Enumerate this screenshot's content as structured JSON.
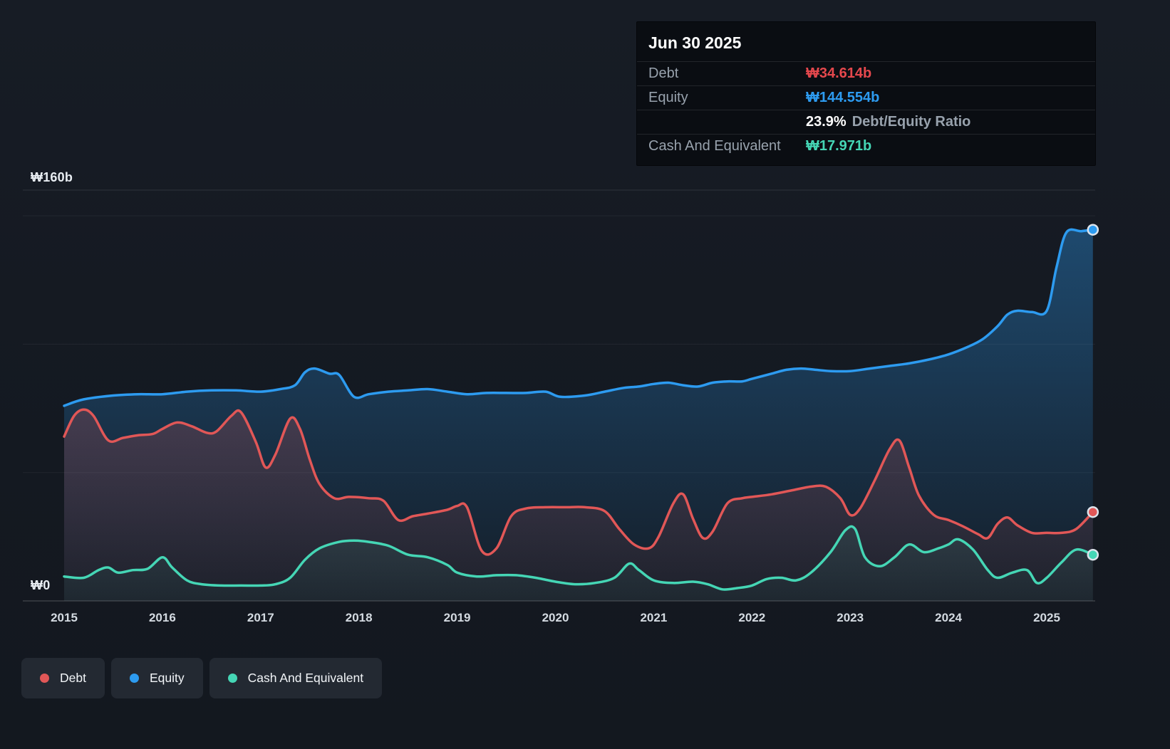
{
  "colors": {
    "background": "#151a21",
    "debt": "#e15757",
    "equity": "#2d9bf0",
    "cash": "#45d6b5"
  },
  "tooltip": {
    "date": "Jun 30 2025",
    "debt_label": "Debt",
    "debt_value": "₩34.614b",
    "equity_label": "Equity",
    "equity_value": "₩144.554b",
    "ratio_value": "23.9%",
    "ratio_label": "Debt/Equity Ratio",
    "cash_label": "Cash And Equivalent",
    "cash_value": "₩17.971b"
  },
  "y_axis": {
    "top_label": "₩160b",
    "bottom_label": "₩0"
  },
  "x_axis": {
    "ticks": [
      "2015",
      "2016",
      "2017",
      "2018",
      "2019",
      "2020",
      "2021",
      "2022",
      "2023",
      "2024",
      "2025"
    ]
  },
  "legend": {
    "debt": "Debt",
    "equity": "Equity",
    "cash": "Cash And Equivalent"
  },
  "chart_data": {
    "type": "area",
    "x_unit": "year",
    "xlim": [
      2015,
      2025.5
    ],
    "ylim": [
      0,
      160
    ],
    "y_gridlines_b": [
      0,
      50,
      100,
      150,
      160
    ],
    "legend_position": "bottom-left",
    "last_values": {
      "debt_b": 34.614,
      "equity_b": 144.554,
      "cash_b": 17.971,
      "debt_equity_ratio_pct": 23.9
    },
    "series": [
      {
        "name": "Equity",
        "color": "#2d9bf0",
        "fill_top_opacity": 0.38,
        "points": [
          [
            2015.0,
            76
          ],
          [
            2015.2,
            78.5
          ],
          [
            2015.5,
            80
          ],
          [
            2015.75,
            80.5
          ],
          [
            2016.0,
            80.5
          ],
          [
            2016.25,
            81.5
          ],
          [
            2016.5,
            82
          ],
          [
            2016.75,
            82
          ],
          [
            2017.0,
            81.5
          ],
          [
            2017.2,
            82.5
          ],
          [
            2017.35,
            84
          ],
          [
            2017.45,
            89
          ],
          [
            2017.55,
            90.5
          ],
          [
            2017.7,
            88.5
          ],
          [
            2017.8,
            88
          ],
          [
            2017.95,
            79.5
          ],
          [
            2018.1,
            80.5
          ],
          [
            2018.3,
            81.5
          ],
          [
            2018.5,
            82
          ],
          [
            2018.7,
            82.5
          ],
          [
            2018.9,
            81.5
          ],
          [
            2019.1,
            80.5
          ],
          [
            2019.3,
            81
          ],
          [
            2019.5,
            81
          ],
          [
            2019.7,
            81
          ],
          [
            2019.9,
            81.5
          ],
          [
            2020.05,
            79.5
          ],
          [
            2020.3,
            80
          ],
          [
            2020.5,
            81.5
          ],
          [
            2020.7,
            83
          ],
          [
            2020.85,
            83.5
          ],
          [
            2021.0,
            84.5
          ],
          [
            2021.15,
            85
          ],
          [
            2021.3,
            84
          ],
          [
            2021.45,
            83.5
          ],
          [
            2021.6,
            85
          ],
          [
            2021.75,
            85.5
          ],
          [
            2021.9,
            85.5
          ],
          [
            2022.0,
            86.5
          ],
          [
            2022.2,
            88.5
          ],
          [
            2022.35,
            90
          ],
          [
            2022.5,
            90.5
          ],
          [
            2022.65,
            90
          ],
          [
            2022.8,
            89.5
          ],
          [
            2023.0,
            89.5
          ],
          [
            2023.2,
            90.5
          ],
          [
            2023.4,
            91.5
          ],
          [
            2023.6,
            92.5
          ],
          [
            2023.8,
            94
          ],
          [
            2024.0,
            96
          ],
          [
            2024.2,
            99
          ],
          [
            2024.35,
            102
          ],
          [
            2024.5,
            107
          ],
          [
            2024.6,
            111.5
          ],
          [
            2024.7,
            113
          ],
          [
            2024.85,
            112.5
          ],
          [
            2025.0,
            113
          ],
          [
            2025.1,
            130
          ],
          [
            2025.2,
            143.5
          ],
          [
            2025.35,
            144
          ],
          [
            2025.47,
            144.554
          ]
        ]
      },
      {
        "name": "Debt",
        "color": "#e15757",
        "fill_top_opacity": 0.4,
        "points": [
          [
            2015.0,
            64
          ],
          [
            2015.1,
            72
          ],
          [
            2015.2,
            74.5
          ],
          [
            2015.3,
            72
          ],
          [
            2015.45,
            62.5
          ],
          [
            2015.6,
            63.5
          ],
          [
            2015.75,
            64.5
          ],
          [
            2015.9,
            65
          ],
          [
            2016.0,
            67
          ],
          [
            2016.15,
            69.5
          ],
          [
            2016.3,
            68
          ],
          [
            2016.45,
            65.5
          ],
          [
            2016.55,
            66
          ],
          [
            2016.7,
            72
          ],
          [
            2016.8,
            73.5
          ],
          [
            2016.95,
            62
          ],
          [
            2017.05,
            52
          ],
          [
            2017.15,
            57
          ],
          [
            2017.3,
            71
          ],
          [
            2017.4,
            67
          ],
          [
            2017.5,
            55
          ],
          [
            2017.6,
            45.5
          ],
          [
            2017.75,
            40
          ],
          [
            2017.9,
            40.5
          ],
          [
            2018.1,
            40
          ],
          [
            2018.25,
            39
          ],
          [
            2018.4,
            31.5
          ],
          [
            2018.55,
            33
          ],
          [
            2018.7,
            34
          ],
          [
            2018.9,
            35.5
          ],
          [
            2019.0,
            37
          ],
          [
            2019.1,
            36.5
          ],
          [
            2019.25,
            19.5
          ],
          [
            2019.4,
            20.5
          ],
          [
            2019.55,
            33
          ],
          [
            2019.7,
            36
          ],
          [
            2019.9,
            36.5
          ],
          [
            2020.1,
            36.5
          ],
          [
            2020.3,
            36.5
          ],
          [
            2020.5,
            35
          ],
          [
            2020.65,
            28
          ],
          [
            2020.8,
            22
          ],
          [
            2020.95,
            20.5
          ],
          [
            2021.05,
            25
          ],
          [
            2021.2,
            38
          ],
          [
            2021.3,
            41.5
          ],
          [
            2021.4,
            32
          ],
          [
            2021.5,
            24.5
          ],
          [
            2021.6,
            27
          ],
          [
            2021.75,
            38
          ],
          [
            2021.9,
            40
          ],
          [
            2022.0,
            40.5
          ],
          [
            2022.2,
            41.5
          ],
          [
            2022.4,
            43
          ],
          [
            2022.6,
            44.5
          ],
          [
            2022.75,
            44.5
          ],
          [
            2022.9,
            40
          ],
          [
            2023.0,
            33.5
          ],
          [
            2023.1,
            36
          ],
          [
            2023.25,
            47
          ],
          [
            2023.4,
            59
          ],
          [
            2023.5,
            62.5
          ],
          [
            2023.6,
            52
          ],
          [
            2023.7,
            41
          ],
          [
            2023.85,
            33.5
          ],
          [
            2024.0,
            31.5
          ],
          [
            2024.15,
            29
          ],
          [
            2024.3,
            26
          ],
          [
            2024.4,
            24.5
          ],
          [
            2024.5,
            30
          ],
          [
            2024.6,
            32.5
          ],
          [
            2024.7,
            29.5
          ],
          [
            2024.85,
            26.5
          ],
          [
            2025.0,
            26.5
          ],
          [
            2025.15,
            26.5
          ],
          [
            2025.3,
            28
          ],
          [
            2025.47,
            34.614
          ]
        ]
      },
      {
        "name": "Cash And Equivalent",
        "color": "#45d6b5",
        "fill_top_opacity": 0.35,
        "points": [
          [
            2015.0,
            9.5
          ],
          [
            2015.2,
            9
          ],
          [
            2015.35,
            12
          ],
          [
            2015.45,
            13
          ],
          [
            2015.55,
            11
          ],
          [
            2015.7,
            12
          ],
          [
            2015.85,
            12.5
          ],
          [
            2016.0,
            17
          ],
          [
            2016.1,
            13
          ],
          [
            2016.25,
            8
          ],
          [
            2016.4,
            6.5
          ],
          [
            2016.6,
            6
          ],
          [
            2016.8,
            6
          ],
          [
            2017.0,
            6
          ],
          [
            2017.15,
            6.5
          ],
          [
            2017.3,
            9
          ],
          [
            2017.45,
            16
          ],
          [
            2017.6,
            20.5
          ],
          [
            2017.8,
            23
          ],
          [
            2017.95,
            23.5
          ],
          [
            2018.1,
            23
          ],
          [
            2018.3,
            21.5
          ],
          [
            2018.5,
            18
          ],
          [
            2018.7,
            17
          ],
          [
            2018.9,
            14
          ],
          [
            2019.0,
            11
          ],
          [
            2019.2,
            9.5
          ],
          [
            2019.4,
            10
          ],
          [
            2019.6,
            10
          ],
          [
            2019.8,
            9
          ],
          [
            2020.0,
            7.5
          ],
          [
            2020.2,
            6.5
          ],
          [
            2020.4,
            7
          ],
          [
            2020.6,
            9
          ],
          [
            2020.75,
            14.5
          ],
          [
            2020.85,
            12
          ],
          [
            2021.0,
            8
          ],
          [
            2021.2,
            7
          ],
          [
            2021.4,
            7.5
          ],
          [
            2021.55,
            6.5
          ],
          [
            2021.7,
            4.5
          ],
          [
            2021.85,
            5
          ],
          [
            2022.0,
            6
          ],
          [
            2022.15,
            8.5
          ],
          [
            2022.3,
            9
          ],
          [
            2022.45,
            8
          ],
          [
            2022.6,
            11
          ],
          [
            2022.8,
            19
          ],
          [
            2022.95,
            27.5
          ],
          [
            2023.05,
            28
          ],
          [
            2023.15,
            17
          ],
          [
            2023.3,
            13.5
          ],
          [
            2023.45,
            17
          ],
          [
            2023.6,
            22
          ],
          [
            2023.75,
            19
          ],
          [
            2023.9,
            20.5
          ],
          [
            2024.0,
            22
          ],
          [
            2024.1,
            24
          ],
          [
            2024.25,
            20
          ],
          [
            2024.4,
            12
          ],
          [
            2024.5,
            9
          ],
          [
            2024.65,
            11
          ],
          [
            2024.8,
            12
          ],
          [
            2024.9,
            7
          ],
          [
            2025.0,
            9
          ],
          [
            2025.15,
            15
          ],
          [
            2025.3,
            20
          ],
          [
            2025.47,
            17.971
          ]
        ]
      }
    ]
  }
}
